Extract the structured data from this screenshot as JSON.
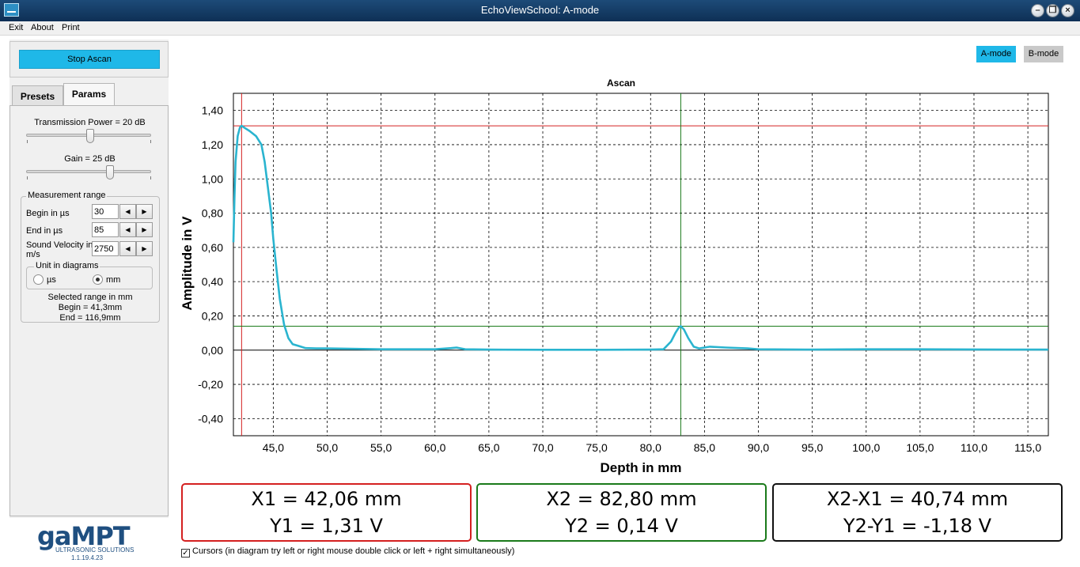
{
  "window": {
    "title": "EchoViewSchool: A-mode"
  },
  "menu": [
    "Exit",
    "About",
    "Print"
  ],
  "left": {
    "stop_label": "Stop Ascan",
    "tabs": [
      "Presets",
      "Params"
    ],
    "power_label": "Transmission Power = 20 dB",
    "gain_label": "Gain = 25 dB",
    "range_group": "Measurement range",
    "begin_label": "Begin in µs",
    "begin_value": "30",
    "end_label": "End in µs",
    "end_value": "85",
    "sound_label": "Sound Velocity in m/s",
    "sound_value": "2750",
    "unit_group": "Unit in diagrams",
    "unit_us": "µs",
    "unit_mm": "mm",
    "sel_title": "Selected range in mm",
    "sel_begin": "Begin = 41,3mm",
    "sel_end": "End = 116,9mm"
  },
  "logo": {
    "brand": "gaMPT",
    "sub": "ULTRASONIC SOLUTIONS",
    "version": "1.1.19.4.23"
  },
  "modes": {
    "a": "A-mode",
    "b": "B-mode"
  },
  "readouts": {
    "x1": "X1 = 42,06 mm",
    "y1": "Y1 =   1,31 V",
    "x2": "X2 = 82,80 mm",
    "y2": "Y2 =   0,14 V",
    "dx": "X2-X1 = 40,74 mm",
    "dy": "Y2-Y1 =  -1,18 V"
  },
  "cursor_label": "Cursors  (in diagram try left or right  mouse double click or left + right simultaneously)",
  "colors": {
    "accent": "#1fb8e8",
    "trace": "#2ab4cf",
    "cursor1": "#d42020",
    "cursor2": "#1a7a1a"
  },
  "chart_data": {
    "type": "line",
    "title": "Ascan",
    "xlabel": "Depth in mm",
    "ylabel": "Amplitude in V",
    "xlim": [
      41.3,
      116.9
    ],
    "ylim": [
      -0.5,
      1.5
    ],
    "xticks": [
      "45,0",
      "50,0",
      "55,0",
      "60,0",
      "65,0",
      "70,0",
      "75,0",
      "80,0",
      "85,0",
      "90,0",
      "95,0",
      "100,0",
      "105,0",
      "110,0",
      "115,0"
    ],
    "xtick_values": [
      45,
      50,
      55,
      60,
      65,
      70,
      75,
      80,
      85,
      90,
      95,
      100,
      105,
      110,
      115
    ],
    "yticks": [
      "1,40",
      "1,20",
      "1,00",
      "0,80",
      "0,60",
      "0,40",
      "0,20",
      "0,00",
      "-0,20",
      "-0,40"
    ],
    "ytick_values": [
      1.4,
      1.2,
      1.0,
      0.8,
      0.6,
      0.4,
      0.2,
      0.0,
      -0.2,
      -0.4
    ],
    "grid": true,
    "series": [
      {
        "x": [
          41.3,
          41.4,
          41.5,
          41.7,
          41.9,
          42.06,
          42.3,
          42.8,
          43.4,
          43.9,
          44.2,
          44.5,
          44.8,
          45.0,
          45.3,
          45.6,
          46.0,
          46.4,
          46.8,
          47.3,
          48.0,
          49.0,
          50.0,
          55.0,
          60.0,
          61.5,
          62.0,
          62.8,
          65.0,
          70.0,
          75.0,
          80.0,
          81.2,
          81.9,
          82.3,
          82.6,
          82.8,
          83.1,
          83.5,
          84.0,
          84.5,
          85.5,
          87.0,
          89.0,
          90.0,
          95.0,
          100.0,
          105.0,
          110.0,
          115.0,
          116.9
        ],
        "y": [
          0.63,
          0.9,
          1.1,
          1.25,
          1.3,
          1.31,
          1.3,
          1.28,
          1.25,
          1.2,
          1.1,
          0.95,
          0.8,
          0.65,
          0.47,
          0.3,
          0.15,
          0.07,
          0.035,
          0.025,
          0.012,
          0.01,
          0.01,
          0.005,
          0.005,
          0.012,
          0.015,
          0.005,
          0.003,
          0.002,
          0.002,
          0.003,
          0.005,
          0.05,
          0.1,
          0.13,
          0.14,
          0.12,
          0.07,
          0.02,
          0.01,
          0.02,
          0.015,
          0.01,
          0.005,
          0.003,
          0.005,
          0.005,
          0.004,
          0.003,
          0.003
        ]
      }
    ],
    "cursors": {
      "x1": 42.06,
      "y1": 1.31,
      "x2": 82.8,
      "y2": 0.14
    }
  }
}
